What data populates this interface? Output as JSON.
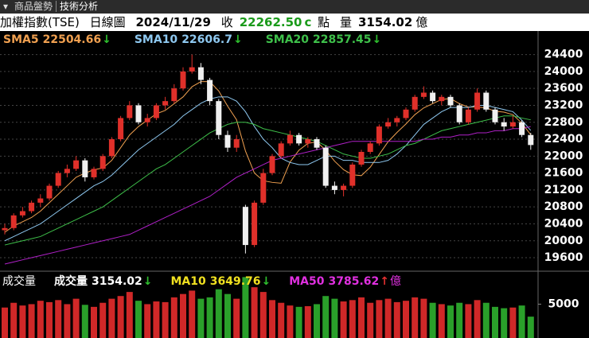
{
  "header": {
    "arrow": "▾",
    "tabs": [
      "商品盤勢",
      "技術分析"
    ],
    "symbol": "加權指數(TSE)",
    "period": "日線圖",
    "date": "2024/11/29",
    "close_label": "收",
    "close": "22262.50",
    "close_flag": "c",
    "unit": "點",
    "volume_label": "量",
    "volume": "3154.02",
    "volume_unit": "億"
  },
  "chart_data": [
    {
      "type": "candlestick",
      "up_color": "#e0302a",
      "down_color": "#f0f0f0",
      "grid": true,
      "ylim": [
        19300,
        24900
      ],
      "yticks": [
        19600,
        20000,
        20400,
        20800,
        21200,
        21600,
        22000,
        22400,
        22800,
        23200,
        23600,
        24000,
        24400
      ],
      "ohlc": [
        [
          20250,
          20400,
          20150,
          20300
        ],
        [
          20300,
          20650,
          20250,
          20600
        ],
        [
          20600,
          20800,
          20550,
          20700
        ],
        [
          20700,
          20950,
          20650,
          20900
        ],
        [
          20900,
          21100,
          20800,
          21000
        ],
        [
          21000,
          21350,
          20950,
          21300
        ],
        [
          21300,
          21650,
          21250,
          21600
        ],
        [
          21600,
          21800,
          21500,
          21700
        ],
        [
          21700,
          22000,
          21650,
          21900
        ],
        [
          21900,
          21950,
          21400,
          21500
        ],
        [
          21500,
          21750,
          21450,
          21700
        ],
        [
          21700,
          22050,
          21650,
          22000
        ],
        [
          22000,
          22450,
          21950,
          22400
        ],
        [
          22400,
          22950,
          22350,
          22900
        ],
        [
          22900,
          23300,
          22850,
          23200
        ],
        [
          23200,
          23250,
          22750,
          22800
        ],
        [
          22800,
          23000,
          22700,
          22900
        ],
        [
          22900,
          23250,
          22850,
          23200
        ],
        [
          23200,
          23400,
          23100,
          23300
        ],
        [
          23300,
          23700,
          23250,
          23600
        ],
        [
          23600,
          24100,
          23550,
          24000
        ],
        [
          24000,
          24400,
          23950,
          24100
        ],
        [
          24100,
          24200,
          23700,
          23800
        ],
        [
          23800,
          23850,
          23200,
          23300
        ],
        [
          23300,
          23350,
          22400,
          22500
        ],
        [
          22500,
          22600,
          22100,
          22200
        ],
        [
          22200,
          22500,
          22100,
          22400
        ],
        [
          20800,
          20850,
          19700,
          19900
        ],
        [
          19900,
          20950,
          19850,
          20900
        ],
        [
          20900,
          21700,
          20850,
          21600
        ],
        [
          21600,
          22050,
          21550,
          22000
        ],
        [
          22000,
          22350,
          21950,
          22300
        ],
        [
          22300,
          22600,
          22250,
          22500
        ],
        [
          22500,
          22550,
          22250,
          22300
        ],
        [
          22300,
          22450,
          22200,
          22400
        ],
        [
          22400,
          22450,
          22150,
          22200
        ],
        [
          22200,
          22250,
          21250,
          21300
        ],
        [
          21300,
          21400,
          21100,
          21200
        ],
        [
          21200,
          21350,
          21050,
          21300
        ],
        [
          21300,
          21850,
          21250,
          21800
        ],
        [
          21800,
          22150,
          21750,
          22100
        ],
        [
          22100,
          22350,
          22050,
          22300
        ],
        [
          22300,
          22750,
          22250,
          22700
        ],
        [
          22700,
          22900,
          22650,
          22800
        ],
        [
          22800,
          22950,
          22700,
          22900
        ],
        [
          22900,
          23150,
          22850,
          23100
        ],
        [
          23100,
          23450,
          23050,
          23400
        ],
        [
          23400,
          23650,
          23350,
          23500
        ],
        [
          23500,
          23550,
          23250,
          23300
        ],
        [
          23300,
          23450,
          23200,
          23400
        ],
        [
          23400,
          23450,
          23150,
          23200
        ],
        [
          23200,
          23250,
          22750,
          22800
        ],
        [
          22800,
          23150,
          22750,
          23100
        ],
        [
          23100,
          23600,
          23050,
          23500
        ],
        [
          23500,
          23550,
          23050,
          23100
        ],
        [
          23100,
          23150,
          22750,
          22800
        ],
        [
          22800,
          22900,
          22600,
          22700
        ],
        [
          22700,
          22950,
          22650,
          22800
        ],
        [
          22800,
          22850,
          22450,
          22500
        ],
        [
          22500,
          22550,
          22150,
          22262.5
        ]
      ],
      "series": [
        {
          "name": "SMA5",
          "color": "#f0a050",
          "legend_value": 22504.66,
          "arrow": "↓",
          "arrow_color": "#2ec02e",
          "values": [
            20200,
            20350,
            20450,
            20550,
            20700,
            20900,
            21100,
            21300,
            21500,
            21600,
            21680,
            21720,
            21900,
            22200,
            22500,
            22700,
            22850,
            23000,
            23080,
            23240,
            23400,
            23640,
            23760,
            23760,
            23540,
            23180,
            22860,
            22120,
            21600,
            21420,
            21380,
            21360,
            21860,
            22140,
            22300,
            22340,
            22140,
            21880,
            21680,
            21560,
            21540,
            21740,
            22040,
            22340,
            22560,
            22760,
            22980,
            23140,
            23240,
            23340,
            23360,
            23240,
            23160,
            23160,
            23140,
            23060,
            23040,
            22980,
            22780,
            22504.66
          ]
        },
        {
          "name": "SMA10",
          "color": "#8ec8f0",
          "legend_value": 22606.7,
          "arrow": "↓",
          "arrow_color": "#2ec02e",
          "values": [
            20000,
            20100,
            20200,
            20300,
            20400,
            20550,
            20700,
            20850,
            21000,
            21150,
            21300,
            21400,
            21550,
            21750,
            21950,
            22150,
            22300,
            22450,
            22600,
            22750,
            22950,
            23100,
            23250,
            23350,
            23400,
            23400,
            23300,
            23050,
            22700,
            22400,
            22200,
            21950,
            21850,
            21800,
            21800,
            21900,
            22000,
            22000,
            21900,
            21900,
            21850,
            21850,
            21850,
            21900,
            22050,
            22250,
            22500,
            22750,
            22900,
            23050,
            23150,
            23150,
            23150,
            23200,
            23200,
            23150,
            23100,
            23050,
            22850,
            22606.7
          ]
        },
        {
          "name": "SMA20",
          "color": "#3ec04a",
          "legend_value": 22857.45,
          "arrow": "↓",
          "arrow_color": "#2ec02e",
          "values": [
            19900,
            19950,
            20000,
            20050,
            20100,
            20200,
            20300,
            20400,
            20500,
            20600,
            20700,
            20800,
            20950,
            21100,
            21250,
            21400,
            21550,
            21700,
            21800,
            21950,
            22100,
            22250,
            22400,
            22550,
            22650,
            22750,
            22800,
            22800,
            22750,
            22650,
            22600,
            22550,
            22500,
            22450,
            22400,
            22350,
            22250,
            22150,
            22050,
            22000,
            21950,
            21950,
            22000,
            22050,
            22150,
            22250,
            22300,
            22400,
            22500,
            22600,
            22650,
            22700,
            22750,
            22800,
            22850,
            22900,
            22950,
            22950,
            22900,
            22857.45
          ]
        },
        {
          "color": "#b020c8",
          "values": [
            19450,
            19500,
            19550,
            19600,
            19650,
            19700,
            19750,
            19800,
            19850,
            19900,
            19950,
            20000,
            20050,
            20100,
            20150,
            20250,
            20350,
            20450,
            20550,
            20650,
            20750,
            20850,
            20950,
            21050,
            21200,
            21350,
            21500,
            21600,
            21700,
            21800,
            21900,
            21950,
            22000,
            22050,
            22100,
            22150,
            22200,
            22250,
            22300,
            22350,
            22350,
            22350,
            22350,
            22350,
            22350,
            22350,
            22350,
            22400,
            22400,
            22450,
            22450,
            22500,
            22500,
            22550,
            22550,
            22600,
            22600,
            22650,
            22650,
            22700
          ]
        }
      ]
    },
    {
      "type": "volume",
      "up_color": "#d02828",
      "down_color": "#2aa02a",
      "y_label": "成交量",
      "ylim": [
        0,
        9750
      ],
      "yticks": [
        5000
      ],
      "values": [
        4500,
        5200,
        4800,
        5000,
        5500,
        5300,
        5600,
        5000,
        5800,
        4900,
        4600,
        5200,
        5800,
        6200,
        6800,
        5500,
        5000,
        5400,
        5300,
        6000,
        6500,
        7000,
        5800,
        6000,
        7200,
        6500,
        5800,
        9000,
        7500,
        6800,
        5600,
        5200,
        4800,
        4600,
        4700,
        5000,
        6200,
        5800,
        5400,
        5600,
        6000,
        5200,
        5600,
        5800,
        5300,
        5500,
        6000,
        5800,
        5200,
        5000,
        4800,
        5200,
        5000,
        5600,
        5200,
        4600,
        4400,
        4500,
        4800,
        3154.02
      ],
      "legend": [
        {
          "name": "成交量",
          "color": "#ffffff",
          "legend_value": 3154.02,
          "arrow": "↓",
          "arrow_color": "#2ec02e"
        },
        {
          "name": "MA10",
          "color": "#f0e020",
          "legend_value": 3649.76,
          "arrow": "↓",
          "arrow_color": "#2ec02e"
        },
        {
          "name": "MA50",
          "color": "#e030e0",
          "legend_value": 3785.62,
          "arrow": "↑",
          "arrow_color": "#e03030",
          "unit": "億"
        }
      ]
    }
  ]
}
